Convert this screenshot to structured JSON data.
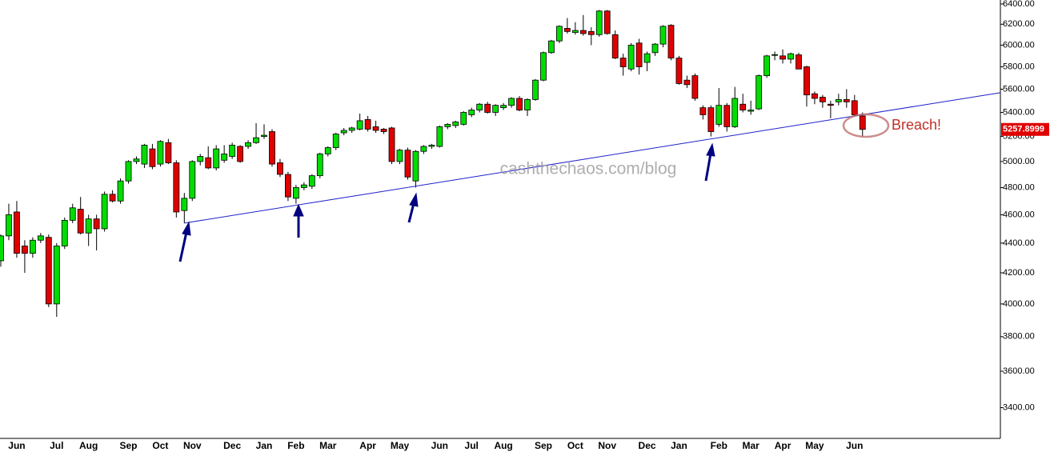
{
  "chart_data": {
    "type": "candlestick",
    "log_y": true,
    "ylim": [
      3240,
      6440
    ],
    "yticks": [
      {
        "value": 3400,
        "label": "3400.00"
      },
      {
        "value": 3600,
        "label": "3600.00"
      },
      {
        "value": 3800,
        "label": "3800.00"
      },
      {
        "value": 4000,
        "label": "4000.00"
      },
      {
        "value": 4200,
        "label": "4200.00"
      },
      {
        "value": 4400,
        "label": "4400.00"
      },
      {
        "value": 4600,
        "label": "4600.00"
      },
      {
        "value": 4800,
        "label": "4800.00"
      },
      {
        "value": 5000,
        "label": "5000.00"
      },
      {
        "value": 5200,
        "label": "5200.00"
      },
      {
        "value": 5400,
        "label": "5400.00"
      },
      {
        "value": 5600,
        "label": "5600.00"
      },
      {
        "value": 5800,
        "label": "5800.00"
      },
      {
        "value": 6000,
        "label": "6000.00"
      },
      {
        "value": 6200,
        "label": "6200.00"
      },
      {
        "value": 6400,
        "label": "6400.00"
      }
    ],
    "up_color": "#00dd00",
    "down_color": "#e00000",
    "categories": [
      null,
      null,
      "Jun",
      null,
      null,
      null,
      null,
      "Jul",
      null,
      null,
      null,
      "Aug",
      null,
      null,
      null,
      null,
      "Sep",
      null,
      null,
      null,
      "Oct",
      null,
      null,
      null,
      "Nov",
      null,
      null,
      null,
      null,
      "Dec",
      null,
      null,
      null,
      "Jan",
      null,
      null,
      null,
      "Feb",
      null,
      null,
      null,
      "Mar",
      null,
      null,
      null,
      null,
      "Apr",
      null,
      null,
      null,
      "May",
      null,
      null,
      null,
      null,
      "Jun",
      null,
      null,
      null,
      "Jul",
      null,
      null,
      null,
      "Aug",
      null,
      null,
      null,
      null,
      "Sep",
      null,
      null,
      null,
      "Oct",
      null,
      null,
      null,
      "Nov",
      null,
      null,
      null,
      null,
      "Dec",
      null,
      null,
      null,
      "Jan",
      null,
      null,
      null,
      null,
      "Feb",
      null,
      null,
      null,
      "Mar",
      null,
      null,
      null,
      "Apr",
      null,
      null,
      null,
      "May",
      null,
      null,
      null,
      null,
      "Jun",
      null
    ],
    "ohlc": [
      [
        4280,
        4460,
        4240,
        4450
      ],
      [
        4450,
        4680,
        4420,
        4600
      ],
      [
        4620,
        4700,
        4300,
        4330
      ],
      [
        4380,
        4420,
        4200,
        4330
      ],
      [
        4330,
        4440,
        4300,
        4420
      ],
      [
        4420,
        4470,
        4400,
        4450
      ],
      [
        4440,
        4460,
        3980,
        4000
      ],
      [
        4000,
        4400,
        3920,
        4380
      ],
      [
        4380,
        4580,
        4360,
        4560
      ],
      [
        4560,
        4680,
        4540,
        4650
      ],
      [
        4640,
        4730,
        4460,
        4470
      ],
      [
        4470,
        4600,
        4380,
        4570
      ],
      [
        4570,
        4600,
        4350,
        4500
      ],
      [
        4500,
        4770,
        4480,
        4750
      ],
      [
        4750,
        4780,
        4690,
        4700
      ],
      [
        4700,
        4870,
        4680,
        4850
      ],
      [
        4850,
        5010,
        4830,
        5000
      ],
      [
        5000,
        5040,
        4980,
        5020
      ],
      [
        4980,
        5140,
        4950,
        5130
      ],
      [
        5100,
        5140,
        4940,
        4960
      ],
      [
        4980,
        5170,
        4960,
        5160
      ],
      [
        5150,
        5180,
        4980,
        4990
      ],
      [
        4990,
        5010,
        4580,
        4620
      ],
      [
        4630,
        4760,
        4540,
        4720
      ],
      [
        4720,
        5010,
        4700,
        5000
      ],
      [
        5000,
        5060,
        4970,
        5040
      ],
      [
        5030,
        5120,
        4940,
        4950
      ],
      [
        4950,
        5130,
        4930,
        5100
      ],
      [
        5010,
        5130,
        4990,
        5060
      ],
      [
        5040,
        5150,
        5020,
        5130
      ],
      [
        5120,
        5130,
        4990,
        5000
      ],
      [
        5120,
        5170,
        5100,
        5150
      ],
      [
        5150,
        5310,
        5140,
        5190
      ],
      [
        5200,
        5300,
        5180,
        5210
      ],
      [
        5240,
        5260,
        4960,
        4980
      ],
      [
        4990,
        5020,
        4880,
        4900
      ],
      [
        4900,
        4920,
        4700,
        4730
      ],
      [
        4720,
        4820,
        4680,
        4800
      ],
      [
        4800,
        4840,
        4780,
        4820
      ],
      [
        4810,
        4900,
        4790,
        4890
      ],
      [
        4890,
        5070,
        4870,
        5060
      ],
      [
        5060,
        5120,
        5040,
        5110
      ],
      [
        5110,
        5230,
        5090,
        5220
      ],
      [
        5230,
        5270,
        5210,
        5250
      ],
      [
        5250,
        5280,
        5230,
        5270
      ],
      [
        5260,
        5390,
        5250,
        5330
      ],
      [
        5340,
        5370,
        5240,
        5260
      ],
      [
        5280,
        5330,
        5230,
        5250
      ],
      [
        5260,
        5270,
        5220,
        5240
      ],
      [
        5270,
        5280,
        4980,
        5000
      ],
      [
        5000,
        5100,
        4980,
        5090
      ],
      [
        5090,
        5110,
        4860,
        4880
      ],
      [
        4850,
        5090,
        4800,
        5080
      ],
      [
        5080,
        5130,
        5060,
        5120
      ],
      [
        5120,
        5140,
        5100,
        5130
      ],
      [
        5120,
        5290,
        5110,
        5280
      ],
      [
        5280,
        5310,
        5260,
        5300
      ],
      [
        5290,
        5330,
        5270,
        5320
      ],
      [
        5300,
        5410,
        5290,
        5400
      ],
      [
        5380,
        5440,
        5360,
        5420
      ],
      [
        5420,
        5480,
        5400,
        5470
      ],
      [
        5470,
        5490,
        5390,
        5400
      ],
      [
        5400,
        5470,
        5370,
        5460
      ],
      [
        5440,
        5480,
        5420,
        5460
      ],
      [
        5460,
        5530,
        5440,
        5520
      ],
      [
        5520,
        5540,
        5410,
        5420
      ],
      [
        5420,
        5520,
        5370,
        5510
      ],
      [
        5510,
        5690,
        5500,
        5680
      ],
      [
        5680,
        5940,
        5670,
        5930
      ],
      [
        5930,
        6050,
        5920,
        6040
      ],
      [
        6040,
        6190,
        6020,
        6180
      ],
      [
        6160,
        6260,
        6110,
        6130
      ],
      [
        6120,
        6220,
        6100,
        6140
      ],
      [
        6140,
        6290,
        6090,
        6110
      ],
      [
        6130,
        6170,
        6000,
        6100
      ],
      [
        6100,
        6340,
        6080,
        6330
      ],
      [
        6330,
        6340,
        6100,
        6110
      ],
      [
        6100,
        6140,
        5870,
        5880
      ],
      [
        5880,
        5920,
        5720,
        5800
      ],
      [
        5780,
        6020,
        5760,
        6000
      ],
      [
        6020,
        6060,
        5730,
        5800
      ],
      [
        5840,
        5940,
        5760,
        5920
      ],
      [
        5930,
        6020,
        5900,
        6010
      ],
      [
        6010,
        6190,
        5980,
        6180
      ],
      [
        6190,
        6200,
        5860,
        5880
      ],
      [
        5880,
        5900,
        5640,
        5650
      ],
      [
        5680,
        5720,
        5610,
        5640
      ],
      [
        5720,
        5740,
        5500,
        5520
      ],
      [
        5440,
        5460,
        5340,
        5380
      ],
      [
        5440,
        5460,
        5200,
        5240
      ],
      [
        5300,
        5610,
        5280,
        5460
      ],
      [
        5460,
        5480,
        5240,
        5280
      ],
      [
        5280,
        5620,
        5270,
        5520
      ],
      [
        5470,
        5560,
        5400,
        5420
      ],
      [
        5410,
        5500,
        5380,
        5420
      ],
      [
        5430,
        5730,
        5420,
        5720
      ],
      [
        5720,
        5910,
        5700,
        5900
      ],
      [
        5910,
        5940,
        5860,
        5912
      ],
      [
        5900,
        5960,
        5830,
        5870
      ],
      [
        5870,
        5930,
        5830,
        5920
      ],
      [
        5910,
        5930,
        5780,
        5780
      ],
      [
        5800,
        5810,
        5450,
        5550
      ],
      [
        5560,
        5580,
        5470,
        5520
      ],
      [
        5530,
        5550,
        5440,
        5490
      ],
      [
        5470,
        5500,
        5350,
        5460
      ],
      [
        5490,
        5560,
        5460,
        5510
      ],
      [
        5510,
        5600,
        5440,
        5490
      ],
      [
        5500,
        5550,
        5370,
        5380
      ],
      [
        5370,
        5400,
        5200,
        5257.8999
      ]
    ],
    "trendline": [
      [
        23,
        4540
      ],
      [
        89,
        5180
      ]
    ],
    "trendline_color": "#2020cc",
    "annotation": "Breach!",
    "watermark": "cashthechaos.com/blog"
  }
}
